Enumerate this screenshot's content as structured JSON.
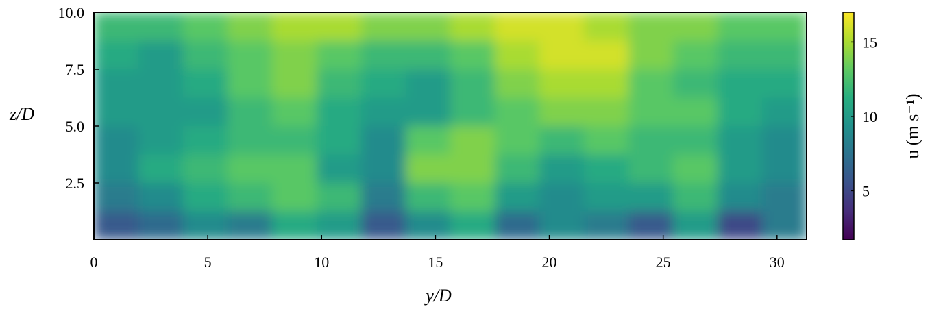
{
  "chart_data": {
    "type": "heatmap",
    "colormap": "viridis",
    "xlabel": "y/D",
    "ylabel": "z/D",
    "colorbar_label": "u (m s⁻¹)",
    "xlim": [
      0,
      31.3
    ],
    "ylim": [
      0,
      10
    ],
    "clim": [
      1.7,
      17
    ],
    "xticks": [
      0,
      5,
      10,
      15,
      20,
      25,
      30
    ],
    "yticks": [
      2.5,
      {
        "value": 5,
        "label": "5.0"
      },
      7.5,
      {
        "value": 10,
        "label": "10.0"
      }
    ],
    "cticks": [
      5,
      10,
      15
    ],
    "values": [
      [
        12,
        12,
        13,
        14,
        15,
        15,
        14,
        14,
        15,
        16,
        16,
        15,
        14,
        14,
        13,
        13
      ],
      [
        11,
        10,
        12,
        13,
        14,
        13,
        12,
        12,
        13,
        15,
        16,
        16,
        14,
        13,
        12,
        12
      ],
      [
        10,
        10,
        11,
        13,
        14,
        12,
        11,
        10,
        12,
        14,
        15,
        15,
        13,
        12,
        11,
        11
      ],
      [
        10,
        10,
        10,
        12,
        13,
        11,
        10,
        10,
        12,
        13,
        14,
        14,
        13,
        13,
        11,
        10
      ],
      [
        9,
        10,
        11,
        12,
        12,
        11,
        9,
        13,
        14,
        13,
        12,
        13,
        12,
        12,
        10,
        9
      ],
      [
        9,
        11,
        12,
        13,
        13,
        10,
        9,
        14,
        14,
        12,
        10,
        11,
        12,
        13,
        10,
        9
      ],
      [
        8,
        9,
        11,
        12,
        13,
        12,
        8,
        12,
        13,
        10,
        9,
        10,
        10,
        12,
        9,
        8
      ],
      [
        6,
        7,
        9,
        8,
        11,
        10,
        6,
        9,
        11,
        7,
        9,
        8,
        6,
        10,
        5,
        8
      ]
    ]
  }
}
